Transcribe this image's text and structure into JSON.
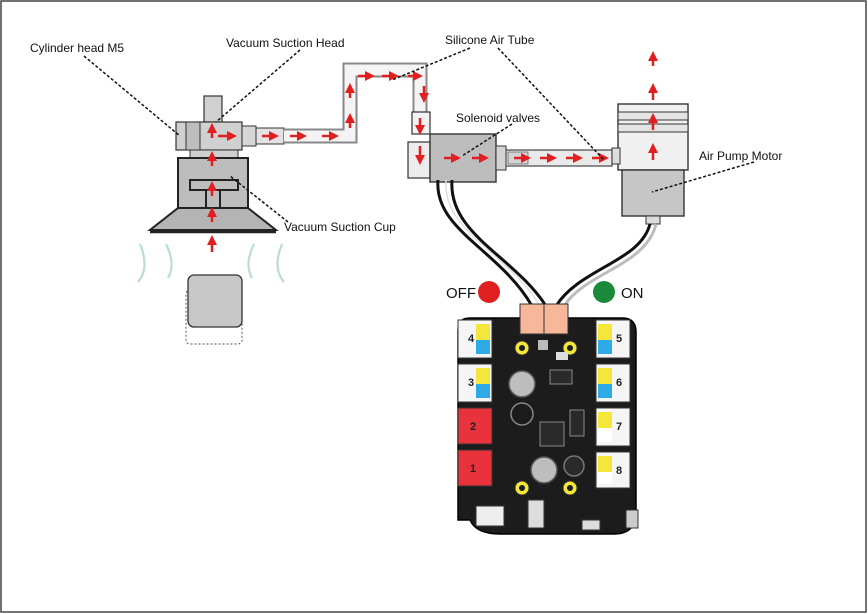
{
  "labels": {
    "cylinder_head": "Cylinder head M5",
    "vacuum_head": "Vacuum Suction Head",
    "air_tube": "Silicone Air Tube",
    "solenoid": "Solenoid valves",
    "pump_motor": "Air Pump Motor",
    "suction_cup": "Vacuum Suction Cup",
    "off": "OFF",
    "on": "ON"
  },
  "board_ports": {
    "left": [
      "4",
      "3",
      "2",
      "1"
    ],
    "right": [
      "5",
      "6",
      "7",
      "8"
    ]
  },
  "colors": {
    "arrow": "#e02020",
    "off_indicator": "#e02020",
    "on_indicator": "#1a8a3a",
    "board": "#1c1c1c",
    "port_red": "#e8323c",
    "port_yellow": "#f5e63c",
    "port_blue": "#2eaae6",
    "component_gray": "#c8c8c8",
    "airflow_green": "#b8e0c8"
  },
  "icons": [
    "red-flow-arrow-icon",
    "off-dot-icon",
    "on-dot-icon"
  ]
}
